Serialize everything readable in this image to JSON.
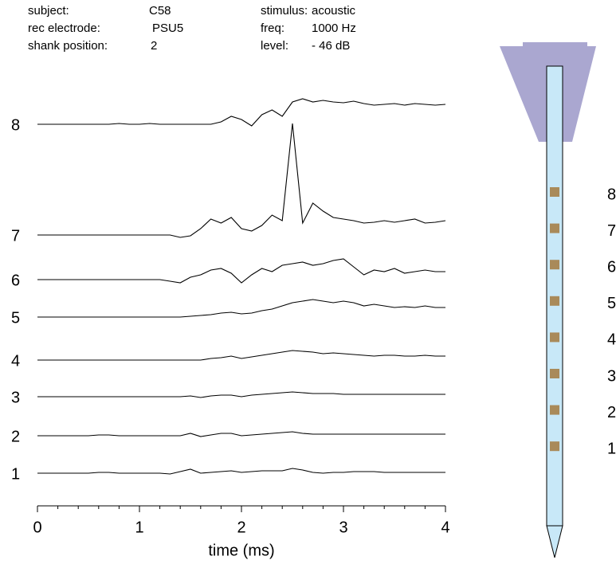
{
  "header": {
    "rows": [
      {
        "label": "subject:",
        "value": "C58"
      },
      {
        "label": "rec electrode:",
        "value": "PSU5"
      },
      {
        "label": "shank position:",
        "value": "2"
      },
      {
        "label": "stimulus:",
        "value": "acoustic"
      },
      {
        "label": "freq:",
        "value": "1000 Hz"
      },
      {
        "label": "level:",
        "value": "- 46 dB"
      }
    ]
  },
  "chart_data": {
    "type": "line",
    "xlabel": "time (ms)",
    "xlim": [
      0,
      4
    ],
    "xticks": [
      0,
      1,
      2,
      3,
      4
    ],
    "xminorticks": [
      0.2,
      0.4,
      0.6,
      0.8,
      1.2,
      1.4,
      1.6,
      1.8,
      2.2,
      2.4,
      2.6,
      2.8,
      3.2,
      3.4,
      3.6,
      3.8
    ],
    "color": "#000000",
    "x": [
      0,
      0.1,
      0.2,
      0.3,
      0.4,
      0.5,
      0.6,
      0.7,
      0.8,
      0.9,
      1,
      1.1,
      1.2,
      1.3,
      1.4,
      1.5,
      1.6,
      1.7,
      1.8,
      1.9,
      2,
      2.1,
      2.2,
      2.3,
      2.4,
      2.5,
      2.6,
      2.7,
      2.8,
      2.9,
      3,
      3.1,
      3.2,
      3.3,
      3.4,
      3.5,
      3.6,
      3.7,
      3.8,
      3.9,
      4
    ],
    "series": [
      {
        "name": "8",
        "values": [
          0,
          0,
          0,
          0,
          0,
          0,
          0,
          0,
          1,
          0,
          0,
          1,
          0,
          0,
          0,
          0,
          0,
          0,
          3,
          10,
          6,
          -2,
          12,
          18,
          10,
          28,
          32,
          28,
          30,
          28,
          27,
          29,
          26,
          24,
          25,
          26,
          24,
          26,
          25,
          24,
          25
        ]
      },
      {
        "name": "7",
        "values": [
          0,
          0,
          0,
          0,
          0,
          0,
          0,
          0,
          0,
          0,
          0,
          0,
          0,
          0,
          -3,
          -1,
          8,
          20,
          15,
          22,
          8,
          5,
          12,
          25,
          18,
          140,
          15,
          40,
          30,
          22,
          20,
          18,
          15,
          16,
          18,
          16,
          18,
          20,
          15,
          16,
          18
        ]
      },
      {
        "name": "6",
        "values": [
          0,
          0,
          0,
          0,
          0,
          0,
          0,
          0,
          0,
          0,
          0,
          0,
          0,
          -2,
          -4,
          3,
          6,
          12,
          14,
          8,
          -4,
          6,
          14,
          10,
          18,
          20,
          22,
          18,
          20,
          24,
          26,
          16,
          6,
          12,
          10,
          14,
          8,
          10,
          12,
          10,
          10
        ]
      },
      {
        "name": "5",
        "values": [
          0,
          0,
          0,
          0,
          0,
          0,
          0,
          0,
          0,
          0,
          0,
          0,
          0,
          0,
          0,
          1,
          2,
          3,
          5,
          6,
          4,
          5,
          8,
          10,
          14,
          18,
          20,
          22,
          20,
          18,
          20,
          18,
          14,
          16,
          14,
          12,
          13,
          12,
          14,
          12,
          12
        ]
      },
      {
        "name": "4",
        "values": [
          0,
          0,
          0,
          0,
          0,
          0,
          0,
          0,
          0,
          0,
          0,
          0,
          0,
          0,
          0,
          0,
          0,
          2,
          3,
          5,
          2,
          4,
          6,
          8,
          10,
          12,
          11,
          10,
          8,
          9,
          8,
          7,
          6,
          5,
          6,
          6,
          5,
          5,
          6,
          5,
          5
        ]
      },
      {
        "name": "3",
        "values": [
          0,
          0,
          0,
          0,
          0,
          0,
          0,
          0,
          0,
          0,
          0,
          0,
          0,
          0,
          0,
          1,
          -1,
          1,
          2,
          2,
          0,
          2,
          3,
          4,
          5,
          6,
          5,
          4,
          4,
          4,
          3,
          3,
          3,
          3,
          3,
          3,
          3,
          3,
          3,
          3,
          3
        ]
      },
      {
        "name": "2",
        "values": [
          0,
          0,
          0,
          0,
          0,
          0,
          1,
          1,
          0,
          0,
          0,
          0,
          0,
          0,
          0,
          3,
          -1,
          1,
          3,
          3,
          0,
          1,
          2,
          3,
          4,
          5,
          3,
          2,
          2,
          2,
          2,
          2,
          2,
          2,
          2,
          2,
          2,
          2,
          2,
          2,
          2
        ]
      },
      {
        "name": "1",
        "values": [
          0,
          0,
          0,
          0,
          0,
          0,
          1,
          1,
          0,
          0,
          0,
          0,
          0,
          -1,
          2,
          5,
          0,
          1,
          2,
          3,
          1,
          2,
          3,
          3,
          3,
          6,
          4,
          1,
          0,
          1,
          1,
          2,
          2,
          2,
          1,
          1,
          1,
          1,
          1,
          1,
          1
        ]
      }
    ]
  },
  "electrode": {
    "sites": [
      "8",
      "7",
      "6",
      "5",
      "4",
      "3",
      "2",
      "1"
    ]
  }
}
